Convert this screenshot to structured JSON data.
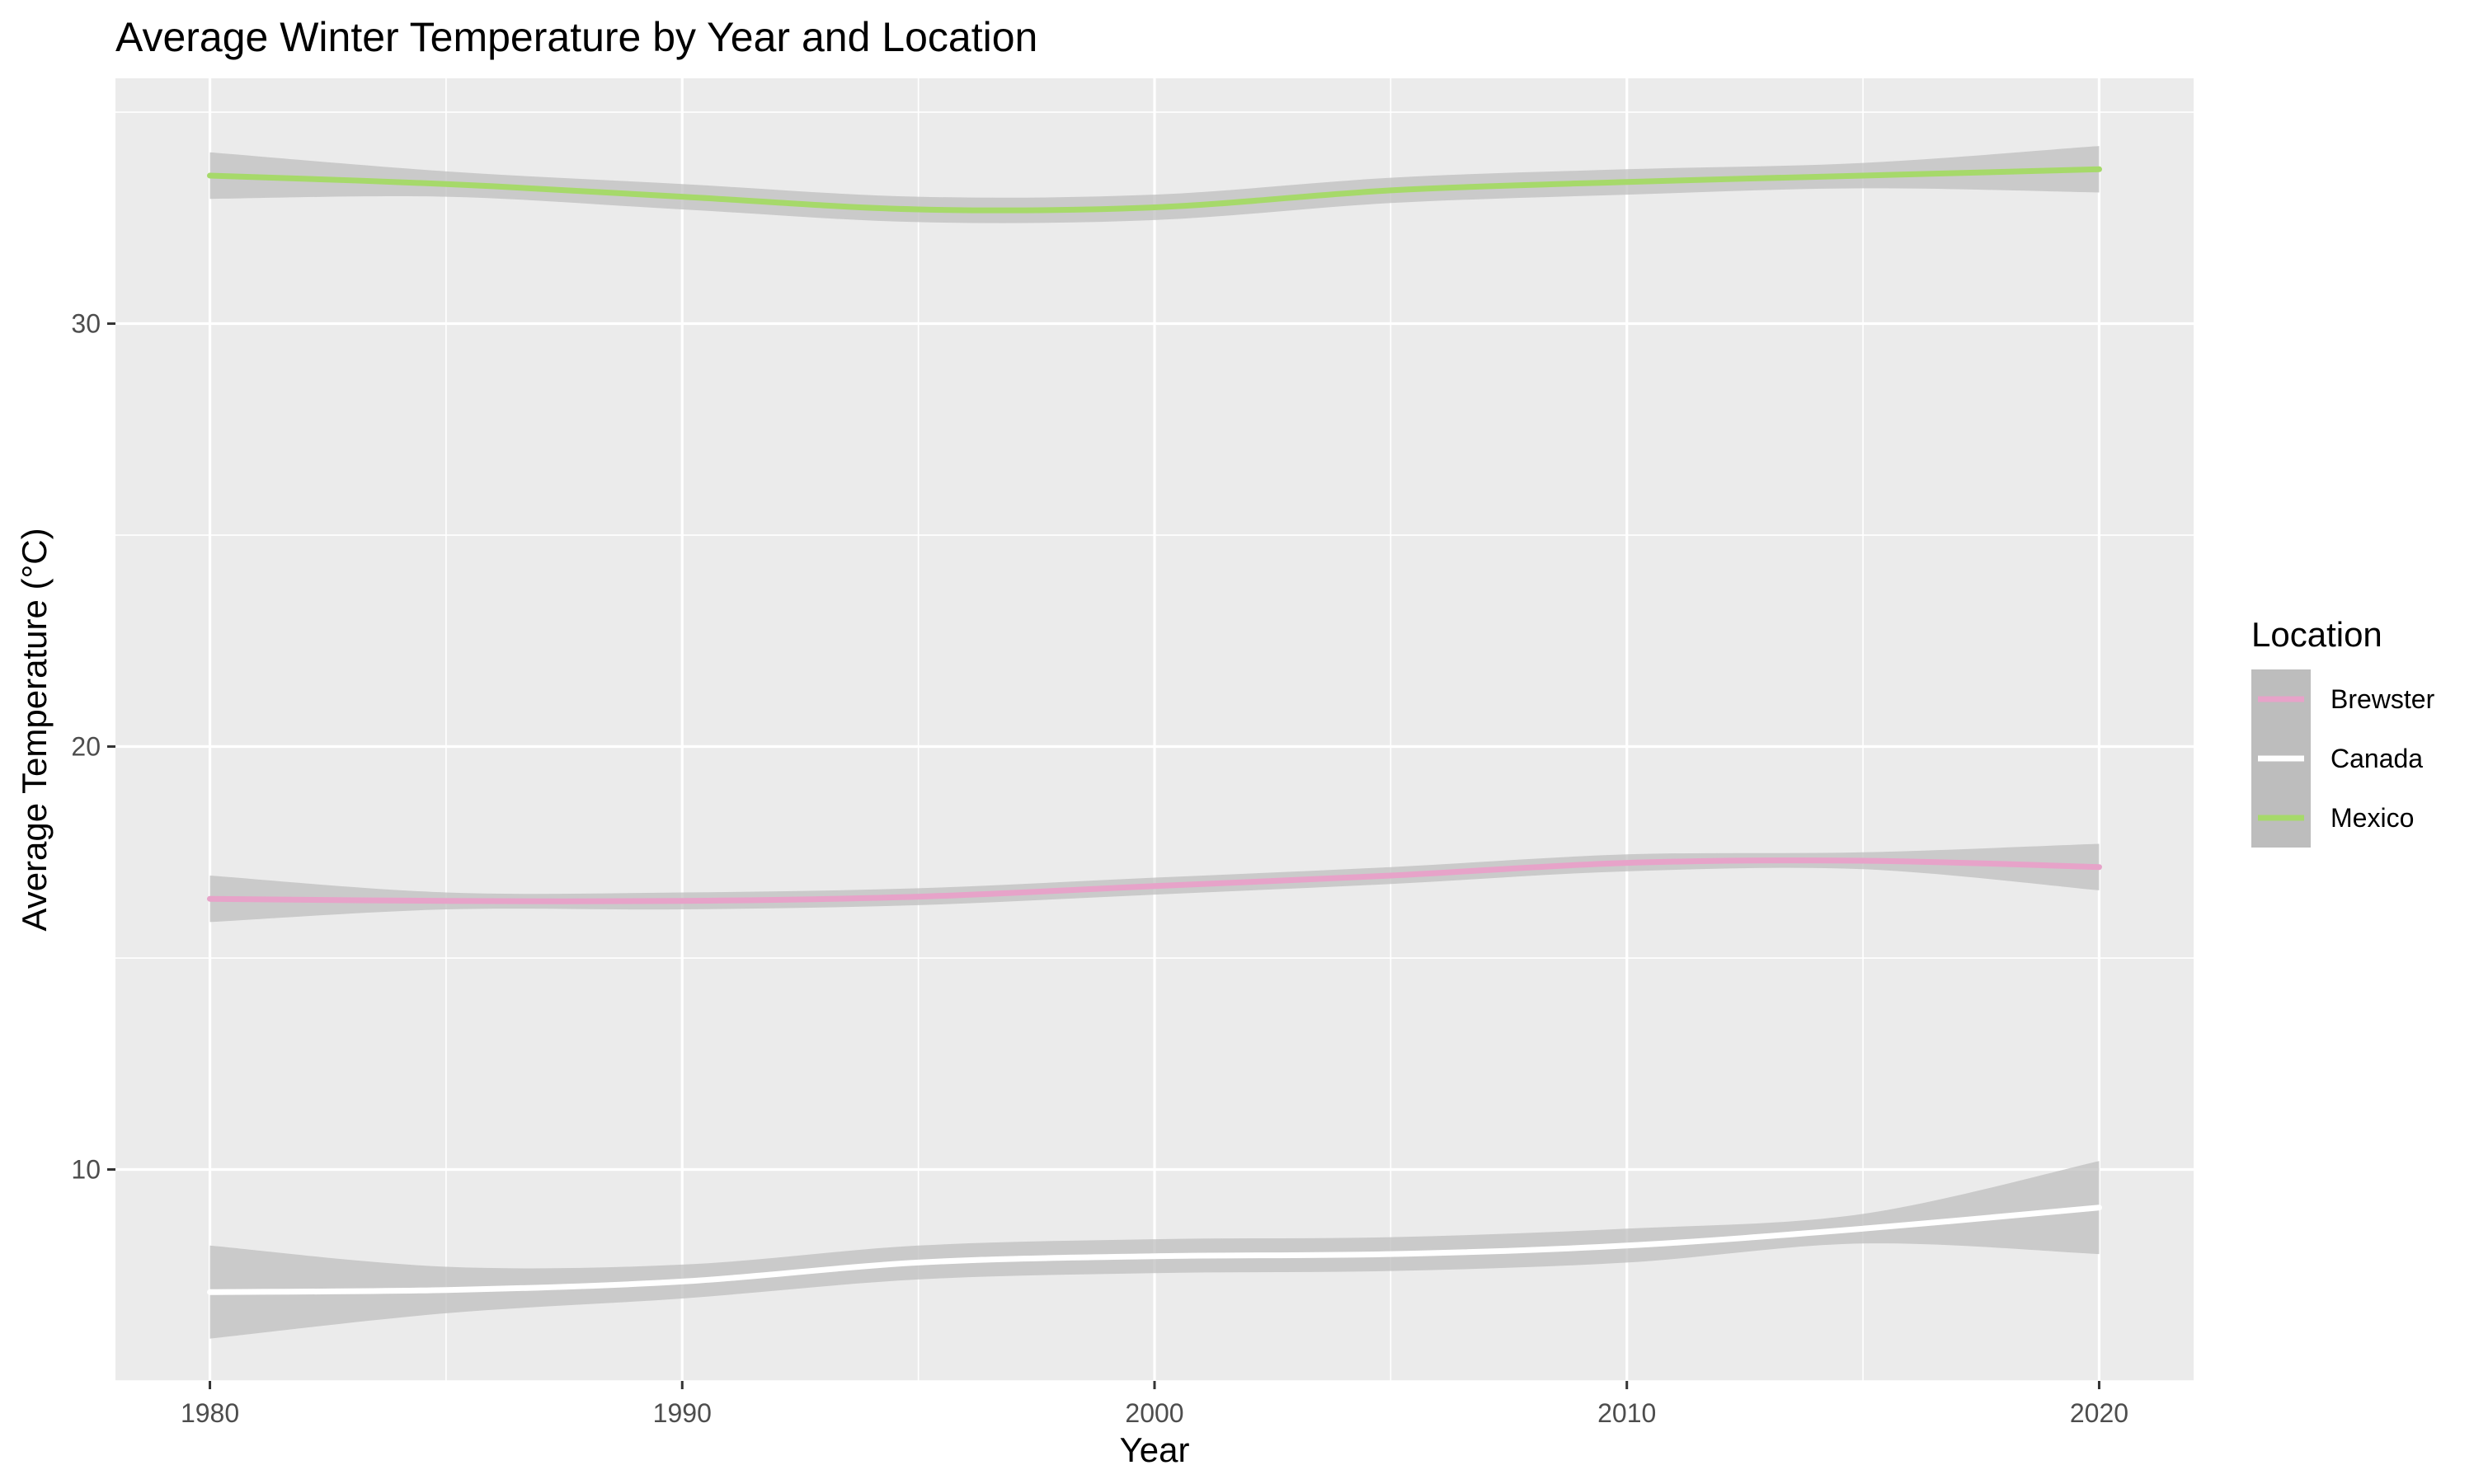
{
  "chart_data": {
    "type": "line",
    "title": "Average Winter Temperature by Year and Location",
    "xlabel": "Year",
    "ylabel": "Average Temperature (°C)",
    "xlim": [
      1978,
      2022
    ],
    "ylim": [
      5,
      35.8
    ],
    "x_ticks": [
      1980,
      1990,
      2000,
      2010,
      2020
    ],
    "y_ticks": [
      10,
      20,
      30
    ],
    "grid": true,
    "legend": {
      "title": "Location",
      "position": "right"
    },
    "x": [
      1980,
      1985,
      1990,
      1995,
      2000,
      2005,
      2010,
      2015,
      2020
    ],
    "series": [
      {
        "name": "Brewster",
        "color": "#e7a3c9",
        "values": [
          16.4,
          16.35,
          16.35,
          16.45,
          16.7,
          16.95,
          17.25,
          17.3,
          17.15
        ],
        "lower": [
          15.85,
          16.15,
          16.15,
          16.25,
          16.5,
          16.75,
          17.05,
          17.1,
          16.6
        ],
        "upper": [
          16.95,
          16.55,
          16.55,
          16.65,
          16.9,
          17.15,
          17.45,
          17.5,
          17.7
        ]
      },
      {
        "name": "Canada",
        "color": "#ffffff",
        "values": [
          7.1,
          7.15,
          7.35,
          7.8,
          7.95,
          8.0,
          8.2,
          8.6,
          9.1
        ],
        "lower": [
          6.0,
          6.6,
          6.95,
          7.4,
          7.55,
          7.6,
          7.8,
          8.25,
          8.0
        ],
        "upper": [
          8.2,
          7.7,
          7.75,
          8.2,
          8.35,
          8.4,
          8.6,
          8.95,
          10.2
        ]
      },
      {
        "name": "Mexico",
        "color": "#a6d96a",
        "values": [
          33.5,
          33.3,
          33.0,
          32.7,
          32.75,
          33.15,
          33.35,
          33.5,
          33.65
        ],
        "lower": [
          32.95,
          33.0,
          32.7,
          32.4,
          32.45,
          32.85,
          33.05,
          33.2,
          33.1
        ],
        "upper": [
          34.05,
          33.6,
          33.3,
          33.0,
          33.05,
          33.45,
          33.65,
          33.8,
          34.2
        ]
      }
    ]
  }
}
